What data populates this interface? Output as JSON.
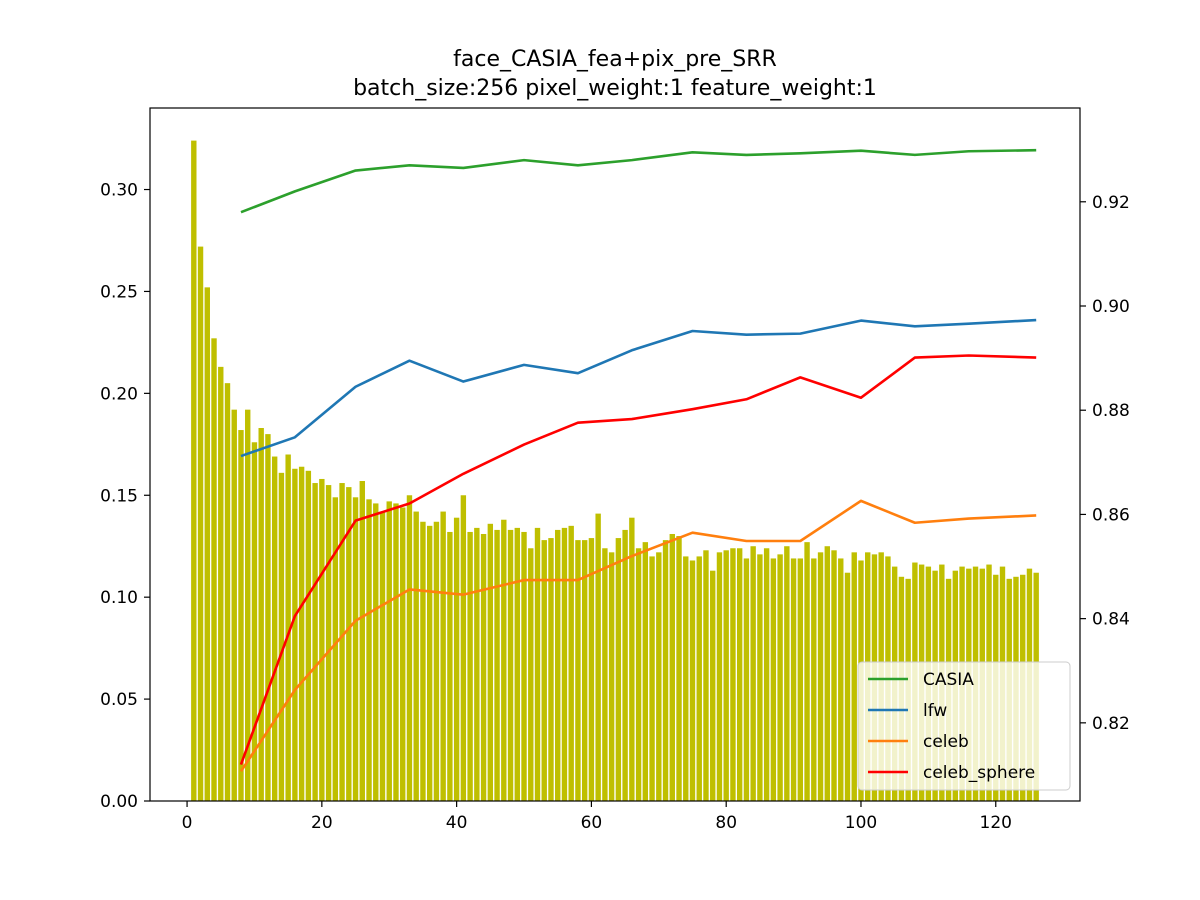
{
  "chart_data": {
    "type": "bar",
    "title": "face_CASIA_fea+pix_pre_SRR",
    "subtitle": "batch_size:256 pixel_weight:1 feature_weight:1",
    "xlabel": "",
    "ylabel": "",
    "xlim": [
      -5.5,
      132.5
    ],
    "ylim": [
      0,
      0.34
    ],
    "y2lim": [
      0.805,
      0.938
    ],
    "x_ticks": [
      "0",
      "20",
      "40",
      "60",
      "80",
      "100",
      "120"
    ],
    "x_tick_values": [
      0,
      20,
      40,
      60,
      80,
      100,
      120
    ],
    "y_ticks": [
      "0.00",
      "0.05",
      "0.10",
      "0.15",
      "0.20",
      "0.25",
      "0.30"
    ],
    "y_tick_values": [
      0,
      0.05,
      0.1,
      0.15,
      0.2,
      0.25,
      0.3
    ],
    "y2_ticks": [
      "0.82",
      "0.84",
      "0.86",
      "0.88",
      "0.90",
      "0.92"
    ],
    "y2_tick_values": [
      0.82,
      0.84,
      0.86,
      0.88,
      0.9,
      0.92
    ],
    "bars": {
      "axis": "left",
      "color": "#bfbf00",
      "x": [
        1,
        2,
        3,
        4,
        5,
        6,
        7,
        8,
        9,
        10,
        11,
        12,
        13,
        14,
        15,
        16,
        17,
        18,
        19,
        20,
        21,
        22,
        23,
        24,
        25,
        26,
        27,
        28,
        29,
        30,
        31,
        32,
        33,
        34,
        35,
        36,
        37,
        38,
        39,
        40,
        41,
        42,
        43,
        44,
        45,
        46,
        47,
        48,
        49,
        50,
        51,
        52,
        53,
        54,
        55,
        56,
        57,
        58,
        59,
        60,
        61,
        62,
        63,
        64,
        65,
        66,
        67,
        68,
        69,
        70,
        71,
        72,
        73,
        74,
        75,
        76,
        77,
        78,
        79,
        80,
        81,
        82,
        83,
        84,
        85,
        86,
        87,
        88,
        89,
        90,
        91,
        92,
        93,
        94,
        95,
        96,
        97,
        98,
        99,
        100,
        101,
        102,
        103,
        104,
        105,
        106,
        107,
        108,
        109,
        110,
        111,
        112,
        113,
        114,
        115,
        116,
        117,
        118,
        119,
        120,
        121,
        122,
        123,
        124,
        125,
        126
      ],
      "values": [
        0.324,
        0.272,
        0.252,
        0.227,
        0.213,
        0.205,
        0.192,
        0.182,
        0.192,
        0.176,
        0.183,
        0.18,
        0.169,
        0.161,
        0.17,
        0.163,
        0.164,
        0.162,
        0.156,
        0.158,
        0.155,
        0.149,
        0.156,
        0.154,
        0.149,
        0.157,
        0.148,
        0.146,
        0.142,
        0.147,
        0.146,
        0.144,
        0.15,
        0.142,
        0.137,
        0.135,
        0.137,
        0.142,
        0.132,
        0.139,
        0.15,
        0.132,
        0.134,
        0.131,
        0.136,
        0.133,
        0.138,
        0.133,
        0.134,
        0.132,
        0.124,
        0.134,
        0.128,
        0.129,
        0.133,
        0.134,
        0.135,
        0.128,
        0.128,
        0.129,
        0.141,
        0.124,
        0.122,
        0.129,
        0.133,
        0.139,
        0.124,
        0.127,
        0.12,
        0.122,
        0.128,
        0.131,
        0.13,
        0.12,
        0.118,
        0.12,
        0.123,
        0.113,
        0.122,
        0.123,
        0.124,
        0.124,
        0.119,
        0.125,
        0.121,
        0.124,
        0.119,
        0.121,
        0.125,
        0.119,
        0.119,
        0.127,
        0.119,
        0.122,
        0.125,
        0.123,
        0.119,
        0.112,
        0.122,
        0.118,
        0.122,
        0.121,
        0.122,
        0.12,
        0.115,
        0.11,
        0.109,
        0.117,
        0.116,
        0.115,
        0.113,
        0.116,
        0.109,
        0.113,
        0.115,
        0.114,
        0.115,
        0.114,
        0.116,
        0.111,
        0.115,
        0.109,
        0.11,
        0.111,
        0.114,
        0.112
      ]
    },
    "series": [
      {
        "name": "CASIA",
        "axis": "right",
        "color": "#2ca02c",
        "x": [
          8,
          16,
          25,
          33,
          41,
          50,
          58,
          66,
          75,
          83,
          91,
          100,
          108,
          116,
          126
        ],
        "values": [
          0.918,
          0.922,
          0.926,
          0.927,
          0.9265,
          0.928,
          0.927,
          0.928,
          0.9295,
          0.929,
          0.9293,
          0.9298,
          0.929,
          0.9297,
          0.9299
        ]
      },
      {
        "name": "lfw",
        "axis": "right",
        "color": "#1f77b4",
        "x": [
          8,
          16,
          25,
          33,
          41,
          50,
          58,
          66,
          75,
          83,
          91,
          100,
          108,
          116,
          126
        ],
        "values": [
          0.8712,
          0.8748,
          0.8845,
          0.8895,
          0.8855,
          0.8887,
          0.8871,
          0.8915,
          0.8952,
          0.8945,
          0.8947,
          0.8972,
          0.8961,
          0.8966,
          0.8973
        ]
      },
      {
        "name": "celeb",
        "axis": "right",
        "color": "#ff7f0e",
        "x": [
          8,
          16,
          25,
          33,
          41,
          50,
          58,
          66,
          75,
          83,
          91,
          100,
          108,
          116,
          126
        ],
        "values": [
          0.8107,
          0.8263,
          0.8396,
          0.8456,
          0.8446,
          0.8474,
          0.8474,
          0.852,
          0.8565,
          0.8549,
          0.8549,
          0.8626,
          0.8584,
          0.8592,
          0.8598
        ]
      },
      {
        "name": "celeb_sphere",
        "axis": "right",
        "color": "#ff0000",
        "x": [
          8,
          16,
          25,
          33,
          41,
          50,
          58,
          66,
          75,
          83,
          91,
          100,
          108,
          116,
          126
        ],
        "values": [
          0.812,
          0.8405,
          0.8588,
          0.8621,
          0.8678,
          0.8734,
          0.8776,
          0.8783,
          0.8802,
          0.8821,
          0.8863,
          0.8824,
          0.8901,
          0.8905,
          0.8901
        ]
      }
    ],
    "legend": {
      "placement": "lower right",
      "entries": [
        "CASIA",
        "lfw",
        "celeb",
        "celeb_sphere"
      ]
    },
    "grid": false
  }
}
